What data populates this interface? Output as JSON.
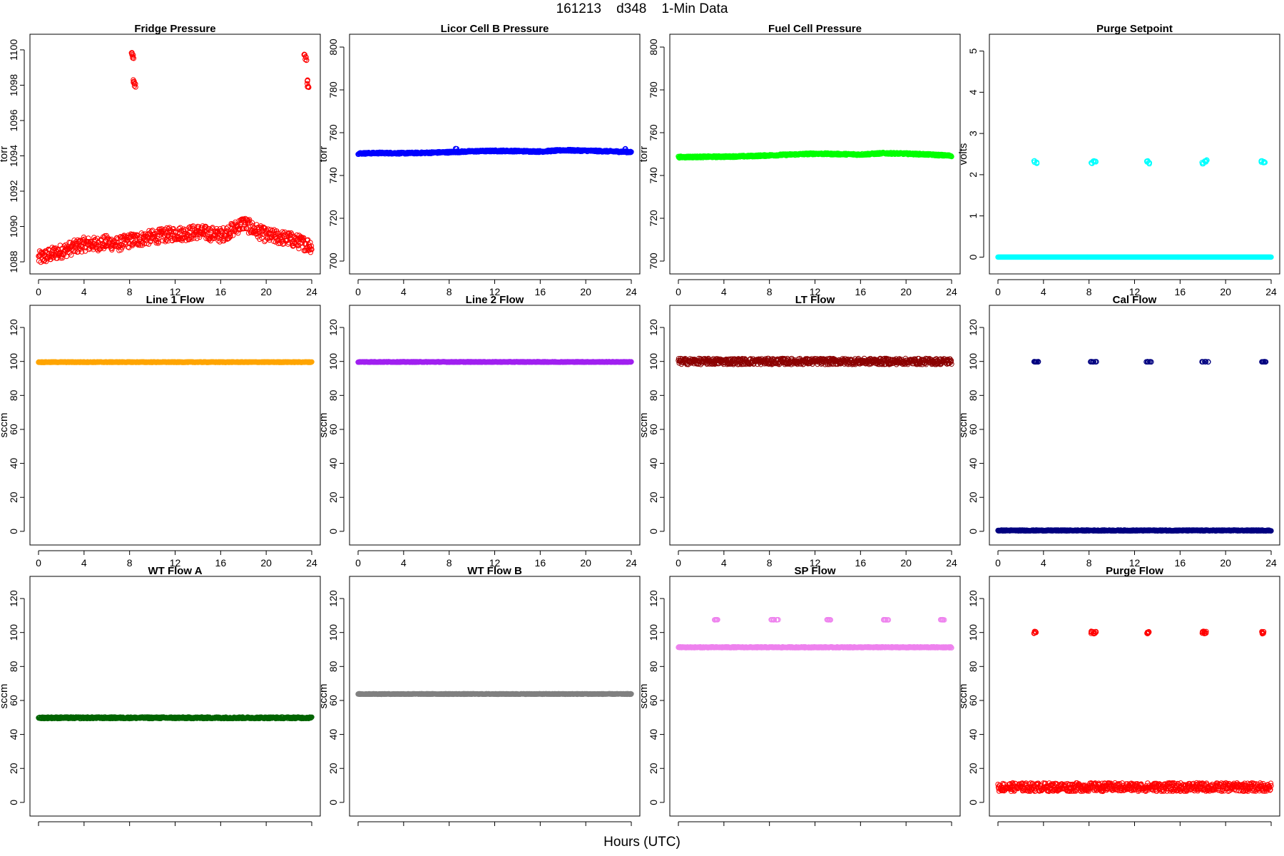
{
  "figure": {
    "title": "161213    d348    1-Min Data",
    "xlabel": "Hours (UTC)"
  },
  "chart_data": [
    {
      "type": "scatter",
      "title": "Fridge Pressure",
      "ylabel": "torr",
      "color": "#ff0000",
      "marker": "open-circle",
      "xlim": [
        0,
        24
      ],
      "xticks": [
        0,
        4,
        8,
        12,
        16,
        20,
        24
      ],
      "ylim": [
        1087.8,
        1100.4
      ],
      "yticks": [
        1088,
        1090,
        1092,
        1094,
        1096,
        1098,
        1100
      ],
      "series": [
        {
          "x": [
            0,
            1,
            2,
            3,
            4,
            5,
            6,
            7,
            8,
            9,
            10,
            11,
            12,
            13,
            14,
            15,
            16,
            17,
            18,
            19,
            20,
            21,
            22,
            23,
            24
          ],
          "y": [
            1088.2,
            1088.4,
            1088.6,
            1088.8,
            1089.0,
            1089.0,
            1089.1,
            1089.0,
            1089.2,
            1089.3,
            1089.4,
            1089.5,
            1089.6,
            1089.6,
            1089.7,
            1089.6,
            1089.5,
            1089.8,
            1090.2,
            1089.8,
            1089.5,
            1089.4,
            1089.3,
            1089.1,
            1088.9
          ]
        }
      ],
      "spread": 0.4,
      "outliers": {
        "x": [
          8.2,
          8.3,
          8.4,
          8.5,
          23.4,
          23.5,
          23.6,
          23.7
        ],
        "y": [
          1099.8,
          1099.6,
          1098.2,
          1098.0,
          1099.7,
          1099.5,
          1098.2,
          1098.0
        ]
      }
    },
    {
      "type": "scatter",
      "title": "Licor Cell B Pressure",
      "ylabel": "torr",
      "color": "#0000ff",
      "marker": "open-circle",
      "xlim": [
        0,
        24
      ],
      "xticks": [
        0,
        4,
        8,
        12,
        16,
        20,
        24
      ],
      "ylim": [
        698,
        802
      ],
      "yticks": [
        700,
        720,
        740,
        760,
        780,
        800
      ],
      "series": [
        {
          "x": [
            0,
            2,
            4,
            6,
            8,
            10,
            12,
            14,
            16,
            18,
            20,
            22,
            24
          ],
          "y": [
            750.3,
            750.5,
            750.4,
            750.6,
            750.9,
            751.3,
            751.5,
            751.4,
            751.2,
            751.8,
            751.6,
            751.3,
            751.0
          ]
        }
      ],
      "spread": 0.4,
      "outliers": {
        "x": [
          8.6,
          23.5
        ],
        "y": [
          752.5,
          752.4
        ]
      }
    },
    {
      "type": "scatter",
      "title": "Fuel Cell Pressure",
      "ylabel": "torr",
      "color": "#00ff00",
      "marker": "open-circle",
      "xlim": [
        0,
        24
      ],
      "xticks": [
        0,
        4,
        8,
        12,
        16,
        20,
        24
      ],
      "ylim": [
        698,
        802
      ],
      "yticks": [
        700,
        720,
        740,
        760,
        780,
        800
      ],
      "series": [
        {
          "x": [
            0,
            2,
            4,
            6,
            8,
            10,
            12,
            14,
            16,
            18,
            20,
            22,
            24
          ],
          "y": [
            748.6,
            748.7,
            748.8,
            749.0,
            749.4,
            749.8,
            750.2,
            750.0,
            749.8,
            750.4,
            750.2,
            749.8,
            749.2
          ]
        }
      ],
      "spread": 0.4,
      "outliers": {
        "x": [],
        "y": []
      }
    },
    {
      "type": "scatter",
      "title": "Purge Setpoint",
      "ylabel": "volts",
      "color": "#00ffff",
      "marker": "open-circle",
      "xlim": [
        0,
        24
      ],
      "xticks": [
        0,
        4,
        8,
        12,
        16,
        20,
        24
      ],
      "ylim": [
        -0.2,
        5.2
      ],
      "yticks": [
        0,
        1,
        2,
        3,
        4,
        5
      ],
      "series": [
        {
          "x": [
            0,
            24
          ],
          "y": [
            0.0,
            0.0
          ]
        }
      ],
      "spread": 0.0,
      "outliers": {
        "x": [
          3.2,
          3.4,
          8.2,
          8.4,
          8.6,
          13.1,
          13.3,
          18.0,
          18.2,
          18.4,
          23.2,
          23.4
        ],
        "y": [
          2.32,
          2.28,
          2.28,
          2.32,
          2.33,
          2.32,
          2.28,
          2.28,
          2.32,
          2.34,
          2.32,
          2.3
        ]
      }
    },
    {
      "type": "scatter",
      "title": "Line 1 Flow",
      "ylabel": "sccm",
      "color": "#ffa500",
      "marker": "open-circle",
      "xlim": [
        0,
        24
      ],
      "xticks": [
        0,
        4,
        8,
        12,
        16,
        20,
        24
      ],
      "ylim": [
        -3,
        128
      ],
      "yticks": [
        0,
        20,
        40,
        60,
        80,
        100,
        120
      ],
      "series": [
        {
          "x": [
            0,
            24
          ],
          "y": [
            99.6,
            99.6
          ]
        }
      ],
      "spread": 0.2,
      "outliers": {
        "x": [],
        "y": []
      }
    },
    {
      "type": "scatter",
      "title": "Line 2 Flow",
      "ylabel": "sccm",
      "color": "#a020f0",
      "marker": "open-circle",
      "xlim": [
        0,
        24
      ],
      "xticks": [
        0,
        4,
        8,
        12,
        16,
        20,
        24
      ],
      "ylim": [
        -3,
        128
      ],
      "yticks": [
        0,
        20,
        40,
        60,
        80,
        100,
        120
      ],
      "series": [
        {
          "x": [
            0,
            24
          ],
          "y": [
            99.7,
            99.7
          ]
        }
      ],
      "spread": 0.2,
      "outliers": {
        "x": [],
        "y": []
      }
    },
    {
      "type": "scatter",
      "title": "LT Flow",
      "ylabel": "sccm",
      "color": "#8b0000",
      "marker": "open-circle",
      "xlim": [
        0,
        24
      ],
      "xticks": [
        0,
        4,
        8,
        12,
        16,
        20,
        24
      ],
      "ylim": [
        -3,
        128
      ],
      "yticks": [
        0,
        20,
        40,
        60,
        80,
        100,
        120
      ],
      "series": [
        {
          "x": [
            0,
            24
          ],
          "y": [
            100.0,
            100.0
          ]
        }
      ],
      "spread": 1.8,
      "outliers": {
        "x": [],
        "y": []
      }
    },
    {
      "type": "scatter",
      "title": "Cal Flow",
      "ylabel": "sccm",
      "color": "#000080",
      "marker": "open-circle",
      "xlim": [
        0,
        24
      ],
      "xticks": [
        0,
        4,
        8,
        12,
        16,
        20,
        24
      ],
      "ylim": [
        -3,
        128
      ],
      "yticks": [
        0,
        20,
        40,
        60,
        80,
        100,
        120
      ],
      "series": [
        {
          "x": [
            0,
            24
          ],
          "y": [
            0.5,
            0.5
          ]
        }
      ],
      "spread": 0.3,
      "outliers": {
        "x": [
          3.2,
          3.3,
          3.5,
          8.2,
          8.4,
          8.6,
          13.1,
          13.2,
          13.4,
          18.0,
          18.2,
          18.4,
          23.2,
          23.3,
          23.5
        ],
        "y": [
          99.8,
          99.8,
          99.8,
          99.8,
          99.8,
          99.8,
          99.8,
          99.8,
          99.8,
          99.8,
          99.8,
          99.8,
          99.8,
          99.8,
          99.8
        ]
      }
    },
    {
      "type": "scatter",
      "title": "WT Flow A",
      "ylabel": "sccm",
      "color": "#006400",
      "marker": "open-circle",
      "xlim": [
        0,
        24
      ],
      "xticks": [
        0,
        4,
        8,
        12,
        16,
        20,
        24
      ],
      "ylim": [
        -3,
        128
      ],
      "yticks": [
        0,
        20,
        40,
        60,
        80,
        100,
        120
      ],
      "series": [
        {
          "x": [
            0,
            24
          ],
          "y": [
            49.8,
            49.8
          ]
        }
      ],
      "spread": 0.5,
      "outliers": {
        "x": [],
        "y": []
      }
    },
    {
      "type": "scatter",
      "title": "WT Flow B",
      "ylabel": "sccm",
      "color": "#808080",
      "marker": "open-circle",
      "xlim": [
        0,
        24
      ],
      "xticks": [
        0,
        4,
        8,
        12,
        16,
        20,
        24
      ],
      "ylim": [
        -3,
        128
      ],
      "yticks": [
        0,
        20,
        40,
        60,
        80,
        100,
        120
      ],
      "series": [
        {
          "x": [
            0,
            24
          ],
          "y": [
            63.8,
            63.8
          ]
        }
      ],
      "spread": 0.2,
      "outliers": {
        "x": [],
        "y": []
      }
    },
    {
      "type": "scatter",
      "title": "SP Flow",
      "ylabel": "sccm",
      "color": "#ee82ee",
      "marker": "open-circle",
      "xlim": [
        0,
        24
      ],
      "xticks": [
        0,
        4,
        8,
        12,
        16,
        20,
        24
      ],
      "ylim": [
        -3,
        128
      ],
      "yticks": [
        0,
        20,
        40,
        60,
        80,
        100,
        120
      ],
      "series": [
        {
          "x": [
            0,
            24
          ],
          "y": [
            91.3,
            91.3
          ]
        }
      ],
      "spread": 0.3,
      "outliers": {
        "x": [
          3.2,
          3.4,
          8.2,
          8.4,
          8.7,
          13.1,
          13.3,
          18.0,
          18.2,
          18.4,
          23.1,
          23.3
        ],
        "y": [
          107.5,
          107.5,
          107.5,
          107.5,
          107.5,
          107.5,
          107.5,
          107.5,
          107.5,
          107.5,
          107.5,
          107.5
        ]
      }
    },
    {
      "type": "scatter",
      "title": "Purge Flow",
      "ylabel": "sccm",
      "color": "#ff0000",
      "marker": "open-circle",
      "xlim": [
        0,
        24
      ],
      "xticks": [
        0,
        4,
        8,
        12,
        16,
        20,
        24
      ],
      "ylim": [
        -3,
        128
      ],
      "yticks": [
        0,
        20,
        40,
        60,
        80,
        100,
        120
      ],
      "series": [
        {
          "x": [
            0,
            24
          ],
          "y": [
            9.0,
            9.0
          ]
        }
      ],
      "spread": 2.5,
      "outliers": {
        "x": [
          3.2,
          3.3,
          8.2,
          8.4,
          8.6,
          13.1,
          13.2,
          18.0,
          18.2,
          18.3,
          23.2,
          23.3
        ],
        "y": [
          100.0,
          100.0,
          100.0,
          100.0,
          100.0,
          100.0,
          100.0,
          100.0,
          100.0,
          100.0,
          100.0,
          100.0
        ]
      }
    }
  ]
}
